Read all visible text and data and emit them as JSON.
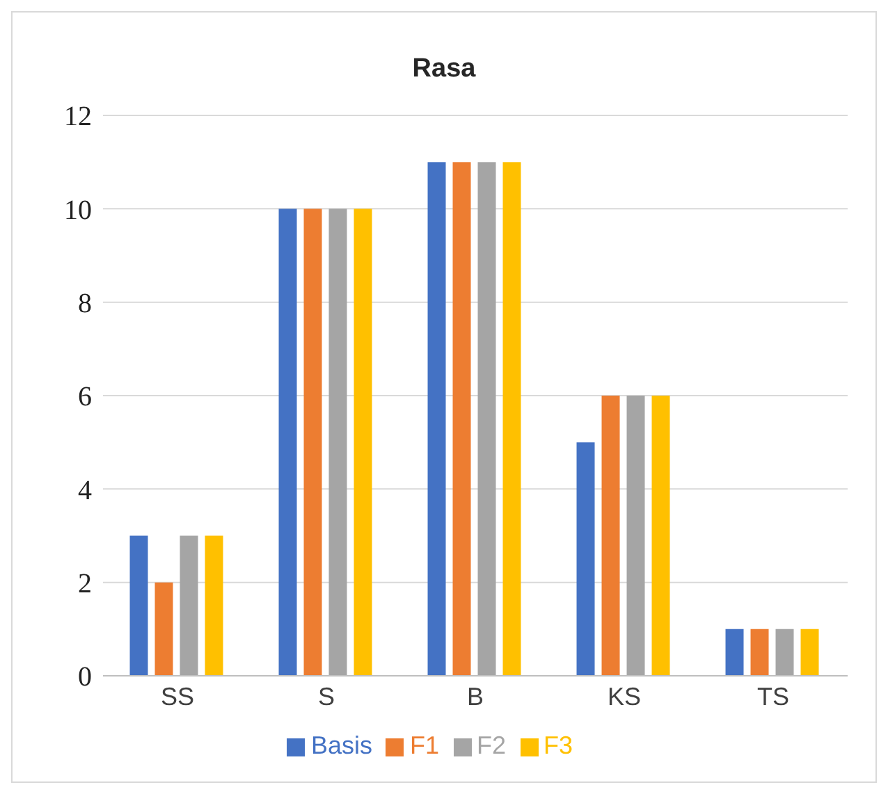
{
  "chart_data": {
    "type": "bar",
    "title": "Rasa",
    "categories": [
      "SS",
      "S",
      "B",
      "KS",
      "TS"
    ],
    "series": [
      {
        "name": "Basis",
        "color": "#4472c4",
        "values": [
          3,
          10,
          11,
          5,
          1
        ]
      },
      {
        "name": "F1",
        "color": "#ed7d31",
        "values": [
          2,
          10,
          11,
          6,
          1
        ]
      },
      {
        "name": "F2",
        "color": "#a5a5a5",
        "values": [
          3,
          10,
          11,
          6,
          1
        ]
      },
      {
        "name": "F3",
        "color": "#ffc000",
        "values": [
          3,
          10,
          11,
          6,
          1
        ]
      }
    ],
    "ylim": [
      0,
      12
    ],
    "yticks": [
      0,
      2,
      4,
      6,
      8,
      10,
      12
    ],
    "grid": "y",
    "legend": "bottom"
  }
}
